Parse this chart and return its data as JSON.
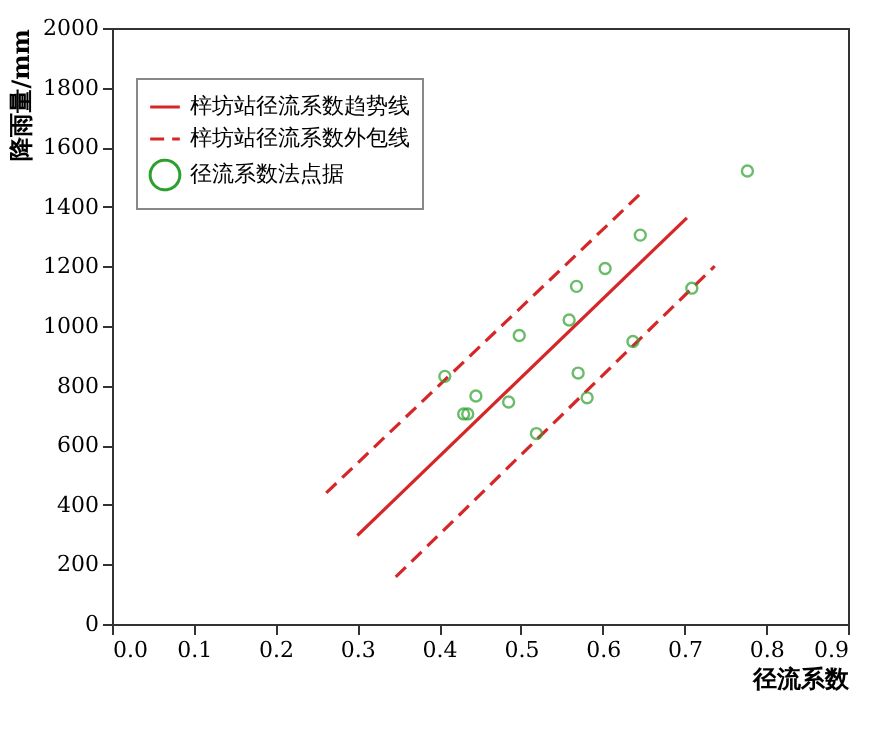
{
  "chart_data": {
    "type": "scatter",
    "xlabel": "径流系数",
    "ylabel": "降雨量/mm",
    "xlim": [
      0,
      0.9
    ],
    "ylim": [
      0,
      2000
    ],
    "xticks": [
      {
        "value": 0,
        "label": "0.0"
      },
      0.1,
      0.2,
      0.3,
      0.4,
      0.5,
      0.6,
      0.7,
      0.8,
      0.9
    ],
    "yticks": [
      0,
      200,
      400,
      600,
      800,
      1000,
      1200,
      1400,
      1600,
      1800,
      2000
    ],
    "grid": false,
    "legend": "top left",
    "series": [
      {
        "name": "梓坊站径流系数趋势线",
        "type": "line",
        "color": "#d62728",
        "line_style": "solid",
        "x": [
          0.3,
          0.703
        ],
        "values": [
          297,
          1363
        ]
      },
      {
        "name": "梓坊站径流系数外包线",
        "type": "line",
        "color": "#d62728",
        "line_style": "dashed",
        "x": [
          0.262,
          0.65
        ],
        "values": [
          440,
          1454
        ]
      },
      {
        "type": "line",
        "color": "#d62728",
        "line_style": "dashed",
        "x": [
          0.347,
          0.737
        ],
        "values": [
          158,
          1201
        ]
      },
      {
        "name": "径流系数法点据",
        "color": "#2ca02c",
        "marker": "circle",
        "x": [
          0.777,
          0.646,
          0.603,
          0.568,
          0.559,
          0.709,
          0.498,
          0.637,
          0.407,
          0.57,
          0.445,
          0.485,
          0.43,
          0.435,
          0.581,
          0.519
        ],
        "values": [
          1520,
          1305,
          1193,
          1133,
          1020,
          1127,
          968,
          948,
          831,
          842,
          765,
          745,
          705,
          705,
          759,
          639
        ]
      }
    ]
  }
}
